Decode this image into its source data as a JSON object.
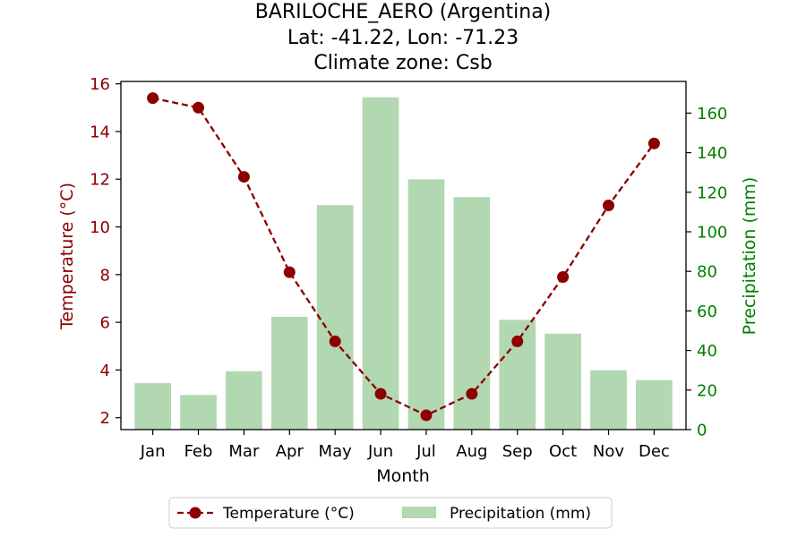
{
  "chart_data": {
    "type": "bar+line",
    "title_lines": [
      "BARILOCHE_AERO (Argentina)",
      "Lat: -41.22, Lon: -71.23",
      "Climate zone: Csb"
    ],
    "xlabel": "Month",
    "ylabel_left": "Temperature (°C)",
    "ylabel_right": "Precipitation (mm)",
    "categories": [
      "Jan",
      "Feb",
      "Mar",
      "Apr",
      "May",
      "Jun",
      "Jul",
      "Aug",
      "Sep",
      "Oct",
      "Nov",
      "Dec"
    ],
    "series": [
      {
        "name": "Temperature (°C)",
        "kind": "line",
        "axis": "left",
        "color": "#8b0000",
        "style": "dashed, circle markers",
        "values": [
          15.4,
          15.0,
          12.1,
          8.1,
          5.2,
          3.0,
          2.1,
          3.0,
          5.2,
          7.9,
          10.9,
          13.5
        ]
      },
      {
        "name": "Precipitation (mm)",
        "kind": "bar",
        "axis": "right",
        "color": "#b2d8b2",
        "values": [
          23.5,
          17.5,
          29.5,
          57.0,
          113.5,
          168.0,
          126.5,
          117.5,
          55.5,
          48.5,
          30.0,
          25.0
        ]
      }
    ],
    "ylim_left": [
      1.5,
      16.1
    ],
    "yticks_left": [
      2,
      4,
      6,
      8,
      10,
      12,
      14,
      16
    ],
    "ylim_right": [
      0,
      176
    ],
    "yticks_right": [
      0,
      20,
      40,
      60,
      80,
      100,
      120,
      140,
      160
    ],
    "left_axis_color": "#8b0000",
    "right_axis_color": "#008000",
    "grid": false,
    "legend_placement": "bottom-center"
  }
}
